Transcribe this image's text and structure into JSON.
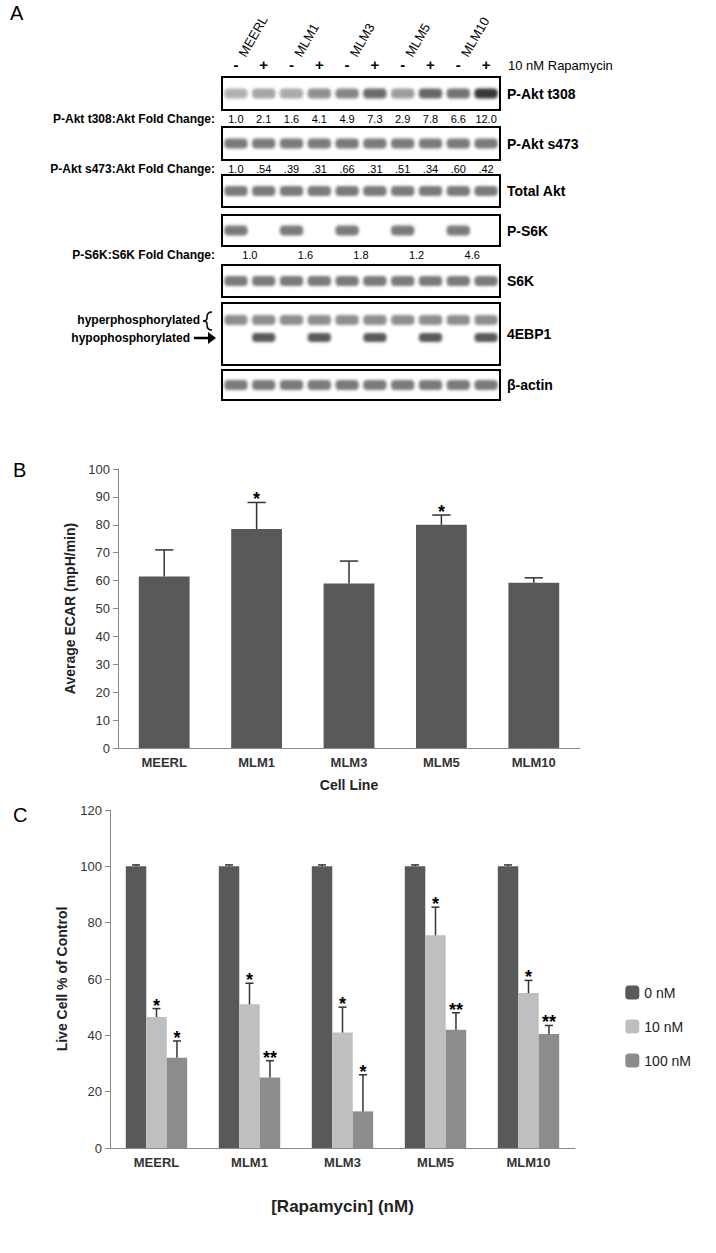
{
  "blot": {
    "panel": "A",
    "lanes": [
      "MEERL",
      "MLM1",
      "MLM3",
      "MLM5",
      "MLM10"
    ],
    "treatment": [
      "-",
      "+"
    ],
    "treatment_label": "10 nM Rapamycin",
    "rows": [
      {
        "label": "P-Akt t308",
        "fold_label": "P-Akt t308:Akt Fold Change:",
        "fold_values": [
          "1.0",
          "2.1",
          "1.6",
          "4.1",
          "4.9",
          "7.3",
          "2.9",
          "7.8",
          "6.6",
          "12.0"
        ]
      },
      {
        "label": "P-Akt s473",
        "fold_label": "P-Akt s473:Akt Fold Change:",
        "fold_values": [
          "1.0",
          ".54",
          ".39",
          ".31",
          ".66",
          ".31",
          ".51",
          ".34",
          ".60",
          ".42"
        ]
      },
      {
        "label": "Total Akt"
      },
      {
        "label": "P-S6K",
        "fold_label": "P-S6K:S6K Fold Change:",
        "fold_values": [
          "1.0",
          null,
          "1.6",
          null,
          "1.8",
          null,
          "1.2",
          null,
          "4.6",
          null
        ]
      },
      {
        "label": "S6K"
      },
      {
        "label": "4EBP1",
        "band_labels": [
          "hyperphosphorylated",
          "hypophosphorylated"
        ]
      },
      {
        "label": "β-actin"
      }
    ]
  },
  "chart_data": [
    {
      "type": "bar",
      "title": "B",
      "x_label": "Cell Line",
      "y_label": "Average ECAR (mpH/min)",
      "categories": [
        "MEERL",
        "MLM1",
        "MLM3",
        "MLM5",
        "MLM10"
      ],
      "values": [
        61.5,
        78.5,
        59,
        80,
        59.2
      ],
      "errors": [
        9.5,
        9.5,
        8,
        3.5,
        1.8
      ],
      "significance": [
        null,
        "*",
        null,
        "*",
        null
      ],
      "color": "#595959",
      "ylim": [
        0,
        100
      ],
      "yticks": [
        0,
        10,
        20,
        30,
        40,
        50,
        60,
        70,
        80,
        90,
        100
      ],
      "grid": false
    },
    {
      "type": "bar",
      "title": "C",
      "x_label": "[Rapamycin] (nM)",
      "y_label": "Live Cell % of Control",
      "categories": [
        "MEERL",
        "MLM1",
        "MLM3",
        "MLM5",
        "MLM10"
      ],
      "series": [
        {
          "name": "0 nM",
          "color": "#595959",
          "values": [
            100,
            100,
            100,
            100,
            100
          ],
          "errors": [
            0.5,
            0.5,
            0.5,
            0.5,
            0.5
          ],
          "significance": [
            null,
            null,
            null,
            null,
            null
          ]
        },
        {
          "name": "10 nM",
          "color": "#bfbfbf",
          "values": [
            46.5,
            51,
            41,
            75.5,
            55
          ],
          "errors": [
            3,
            7.5,
            9,
            10,
            4.5
          ],
          "significance": [
            "*",
            "*",
            "*",
            "*",
            "*"
          ]
        },
        {
          "name": "100 nM",
          "color": "#8c8c8c",
          "values": [
            32,
            25,
            13,
            42,
            40.5
          ],
          "errors": [
            6,
            6,
            13,
            6,
            3
          ],
          "significance": [
            "*",
            "**",
            "*",
            "**",
            "**"
          ]
        }
      ],
      "ylim": [
        0,
        120
      ],
      "yticks": [
        0,
        20,
        40,
        60,
        80,
        100,
        120
      ],
      "grid": false,
      "legend": "right"
    }
  ]
}
